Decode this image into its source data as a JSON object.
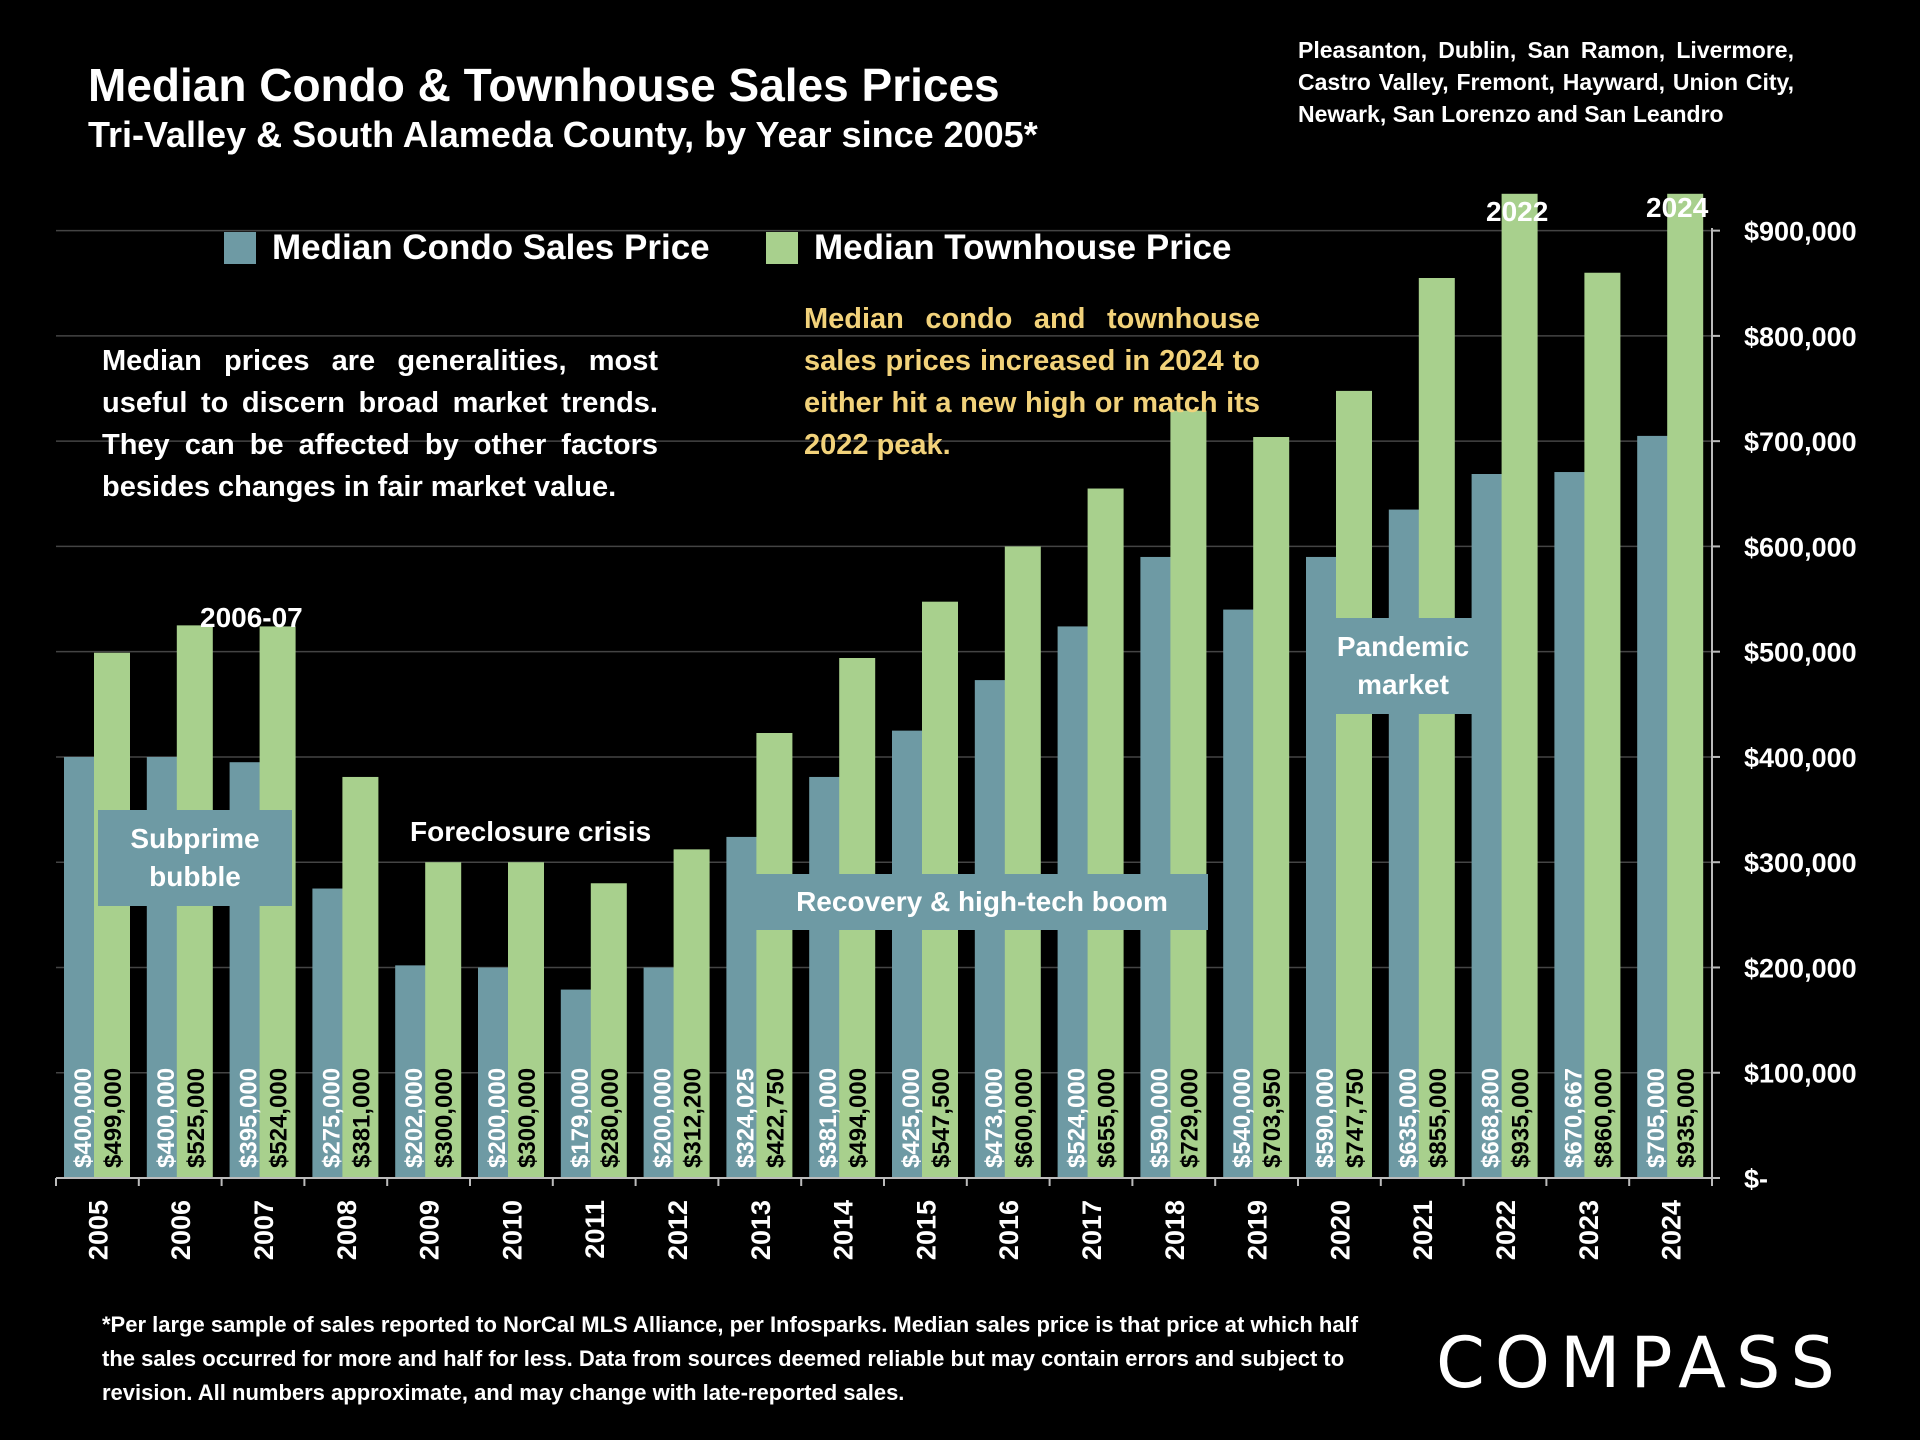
{
  "header": {
    "title": "Median Condo & Townhouse Sales Prices",
    "subtitle": "Tri-Valley & South Alameda County, by Year since 2005*",
    "region": "Pleasanton, Dublin, San Ramon, Livermore, Castro Valley, Fremont, Hayward, Union City, Newark, San Lorenzo and San Leandro"
  },
  "notes": {
    "left": "Median prices are generalities, most useful to discern broad market trends. They can be affected by other factors besides changes in fair market value.",
    "callout": "Median condo and townhouse sales prices increased in 2024 to either hit a new high or match its 2022 peak.",
    "footnote": "*Per large sample of sales reported to NorCal MLS Alliance, per Infosparks. Median sales price is that price at which half the sales occurred for more and half for less. Data from sources deemed reliable but may contain errors and subject to revision. All numbers approximate, and may change with late-reported sales."
  },
  "annotations": {
    "subprime": "Subprime bubble",
    "foreclosure": "Foreclosure crisis",
    "recovery": "Recovery & high-tech boom",
    "pandemic": "Pandemic market",
    "peak_2006_07": "2006-07",
    "peak_2022": "2022",
    "peak_2024": "2024"
  },
  "logo": "COMPASS",
  "colors": {
    "condo": "#6e9aa4",
    "townhouse": "#a8d08d",
    "callout": "#f2d27a",
    "background": "#000000"
  },
  "chart_data": {
    "type": "bar",
    "categories": [
      "2005",
      "2006",
      "2007",
      "2008",
      "2009",
      "2010",
      "2011",
      "2012",
      "2013",
      "2014",
      "2015",
      "2016",
      "2017",
      "2018",
      "2019",
      "2020",
      "2021",
      "2022",
      "2023",
      "2024"
    ],
    "series": [
      {
        "name": "Median Condo Sales Price",
        "values": [
          400000,
          400000,
          395000,
          275000,
          202000,
          200000,
          179000,
          200000,
          324025,
          381000,
          425000,
          473000,
          524000,
          590000,
          540000,
          590000,
          635000,
          668800,
          670667,
          705000
        ],
        "labels": [
          "$400,000",
          "$400,000",
          "$395,000",
          "$275,000",
          "$202,000",
          "$200,000",
          "$179,000",
          "$200,000",
          "$324,025",
          "$381,000",
          "$425,000",
          "$473,000",
          "$524,000",
          "$590,000",
          "$540,000",
          "$590,000",
          "$635,000",
          "$668,800",
          "$670,667",
          "$705,000"
        ]
      },
      {
        "name": "Median Townhouse Price",
        "values": [
          499000,
          525000,
          524000,
          381000,
          300000,
          300000,
          280000,
          312200,
          422750,
          494000,
          547500,
          600000,
          655000,
          729000,
          703950,
          747750,
          855000,
          935000,
          860000,
          935000
        ],
        "labels": [
          "$499,000",
          "$525,000",
          "$524,000",
          "$381,000",
          "$300,000",
          "$300,000",
          "$280,000",
          "$312,200",
          "$422,750",
          "$494,000",
          "$547,500",
          "$600,000",
          "$655,000",
          "$729,000",
          "$703,950",
          "$747,750",
          "$855,000",
          "$935,000",
          "$860,000",
          "$935,000"
        ]
      }
    ],
    "y_ticks": [
      "$-",
      "$100,000",
      "$200,000",
      "$300,000",
      "$400,000",
      "$500,000",
      "$600,000",
      "$700,000",
      "$800,000",
      "$900,000"
    ],
    "ylim": [
      0,
      950000
    ],
    "grid": true,
    "y_axis_side": "right",
    "legend": "top"
  }
}
